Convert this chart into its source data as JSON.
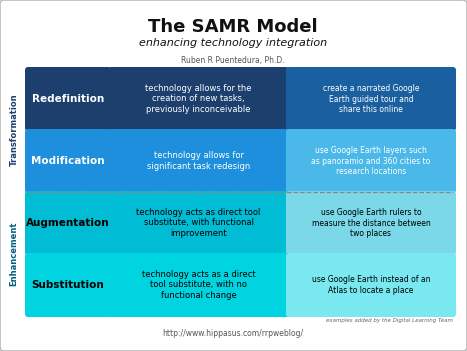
{
  "title": "The SAMR Model",
  "subtitle": "enhancing technology integration",
  "author": "Ruben R Puentedura, Ph.D.",
  "url": "http://www.hippasus.com/rrpweblog/",
  "examples_credit": "examples added by the Digital Learning Team",
  "bg_color": "#ffffff",
  "rows": [
    {
      "label": "Redefinition",
      "label_bg": "#1c3f6e",
      "label_fg": "#ffffff",
      "desc": "technology allows for the\ncreation of new tasks,\npreviously inconceivable",
      "desc_bg": "#1c3f6e",
      "desc_fg": "#ffffff",
      "example": "create a narrated Google\nEarth guided tour and\nshare this online",
      "example_bg": "#1a5fa0",
      "example_fg": "#ffffff",
      "section": "Transformation"
    },
    {
      "label": "Modification",
      "label_bg": "#1e8fdc",
      "label_fg": "#ffffff",
      "desc": "technology allows for\nsignificant task redesign",
      "desc_bg": "#1e8fdc",
      "desc_fg": "#ffffff",
      "example": "use Google Earth layers such\nas panoramio and 360 cities to\nresearch locations",
      "example_bg": "#4ab8e8",
      "example_fg": "#ffffff",
      "section": "Transformation"
    },
    {
      "label": "Augmentation",
      "label_bg": "#00bcd4",
      "label_fg": "#000000",
      "desc": "technology acts as direct tool\nsubstitute, with functional\nimprovement",
      "desc_bg": "#00bcd4",
      "desc_fg": "#000000",
      "example": "use Google Earth rulers to\nmeasure the distance between\ntwo places",
      "example_bg": "#7ad8e8",
      "example_fg": "#000000",
      "section": "Enhancement"
    },
    {
      "label": "Substitution",
      "label_bg": "#00d4e0",
      "label_fg": "#000000",
      "desc": "technology acts as a direct\ntool substitute, with no\nfunctional change",
      "desc_bg": "#00d4e0",
      "desc_fg": "#000000",
      "example": "use Google Earth instead of an\nAtlas to locate a place",
      "example_bg": "#7ae8f0",
      "example_fg": "#000000",
      "section": "Enhancement"
    }
  ]
}
